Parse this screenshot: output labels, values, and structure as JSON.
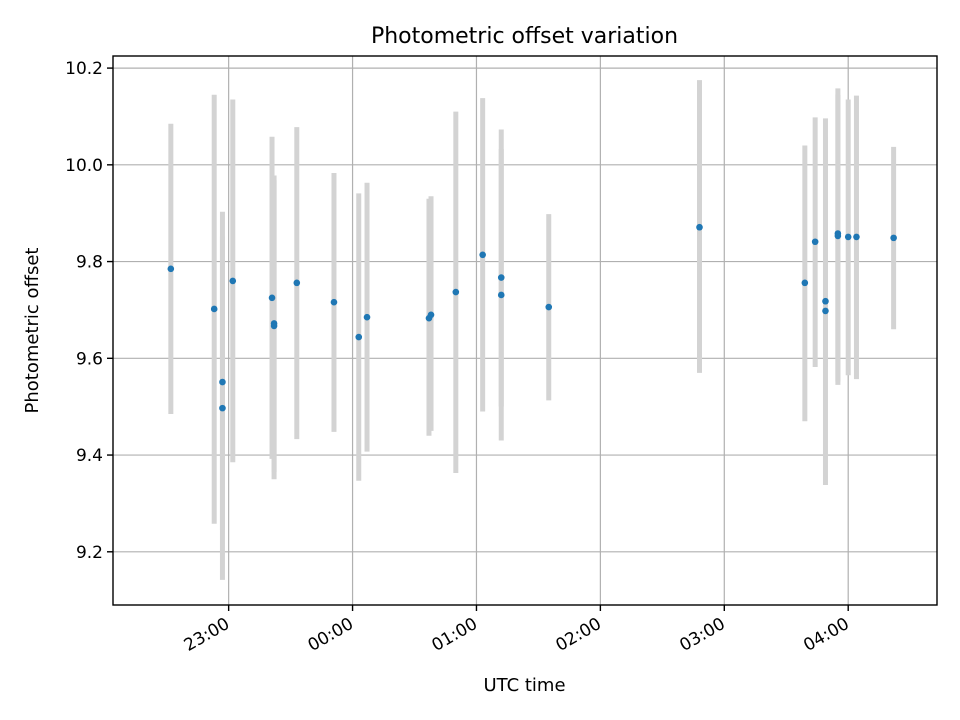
{
  "chart_data": {
    "type": "scatter",
    "title": "Photometric offset variation",
    "xlabel": "UTC time",
    "ylabel": "Photometric offset",
    "x_tick_labels": [
      "23:00",
      "00:00",
      "01:00",
      "02:00",
      "03:00",
      "04:00"
    ],
    "x_ticks": [
      "23:00",
      "00:00",
      "01:00",
      "02:00",
      "03:00",
      "04:00"
    ],
    "xlim": [
      "22:04",
      "04:43"
    ],
    "y_ticks": [
      9.2,
      9.4,
      9.6,
      9.8,
      10.0,
      10.2
    ],
    "y_tick_labels": [
      "9.2",
      "9.4",
      "9.6",
      "9.8",
      "10.0",
      "10.2"
    ],
    "ylim": [
      9.09,
      10.225
    ],
    "grid": true,
    "point_color": "#1f77b4",
    "errorbar_color": "#d3d3d3",
    "points": [
      {
        "time": "22:32",
        "value": 9.785,
        "low": 9.485,
        "high": 10.085
      },
      {
        "time": "22:53",
        "value": 9.702,
        "low": 9.258,
        "high": 10.145
      },
      {
        "time": "22:57",
        "value": 9.551,
        "low": 9.245,
        "high": 9.903
      },
      {
        "time": "22:57",
        "value": 9.497,
        "low": 9.142,
        "high": 9.852
      },
      {
        "time": "23:02",
        "value": 9.76,
        "low": 9.385,
        "high": 10.135
      },
      {
        "time": "23:21",
        "value": 9.725,
        "low": 9.392,
        "high": 10.058
      },
      {
        "time": "23:22",
        "value": 9.672,
        "low": 9.365,
        "high": 9.978
      },
      {
        "time": "23:22",
        "value": 9.667,
        "low": 9.35,
        "high": 9.968
      },
      {
        "time": "23:33",
        "value": 9.756,
        "low": 9.433,
        "high": 10.078
      },
      {
        "time": "23:51",
        "value": 9.716,
        "low": 9.448,
        "high": 9.983
      },
      {
        "time": "00:03",
        "value": 9.644,
        "low": 9.347,
        "high": 9.941
      },
      {
        "time": "00:07",
        "value": 9.685,
        "low": 9.407,
        "high": 9.963
      },
      {
        "time": "00:37",
        "value": 9.683,
        "low": 9.44,
        "high": 9.93
      },
      {
        "time": "00:38",
        "value": 9.69,
        "low": 9.45,
        "high": 9.935
      },
      {
        "time": "00:50",
        "value": 9.737,
        "low": 9.363,
        "high": 10.11
      },
      {
        "time": "01:03",
        "value": 9.814,
        "low": 9.49,
        "high": 10.138
      },
      {
        "time": "01:12",
        "value": 9.767,
        "low": 9.5,
        "high": 10.033
      },
      {
        "time": "01:12",
        "value": 9.731,
        "low": 9.43,
        "high": 10.073
      },
      {
        "time": "01:35",
        "value": 9.706,
        "low": 9.513,
        "high": 9.898
      },
      {
        "time": "02:48",
        "value": 9.871,
        "low": 9.57,
        "high": 10.175
      },
      {
        "time": "03:39",
        "value": 9.756,
        "low": 9.47,
        "high": 10.04
      },
      {
        "time": "03:44",
        "value": 9.841,
        "low": 9.582,
        "high": 10.098
      },
      {
        "time": "03:49",
        "value": 9.718,
        "low": 9.582,
        "high": 10.096
      },
      {
        "time": "03:49",
        "value": 9.698,
        "low": 9.338,
        "high": 10.058
      },
      {
        "time": "03:55",
        "value": 9.858,
        "low": 9.545,
        "high": 10.158
      },
      {
        "time": "03:55",
        "value": 9.853,
        "low": 9.552,
        "high": 10.145
      },
      {
        "time": "04:00",
        "value": 9.851,
        "low": 9.565,
        "high": 10.135
      },
      {
        "time": "04:04",
        "value": 9.851,
        "low": 9.557,
        "high": 10.143
      },
      {
        "time": "04:22",
        "value": 9.849,
        "low": 9.66,
        "high": 10.037
      }
    ]
  }
}
